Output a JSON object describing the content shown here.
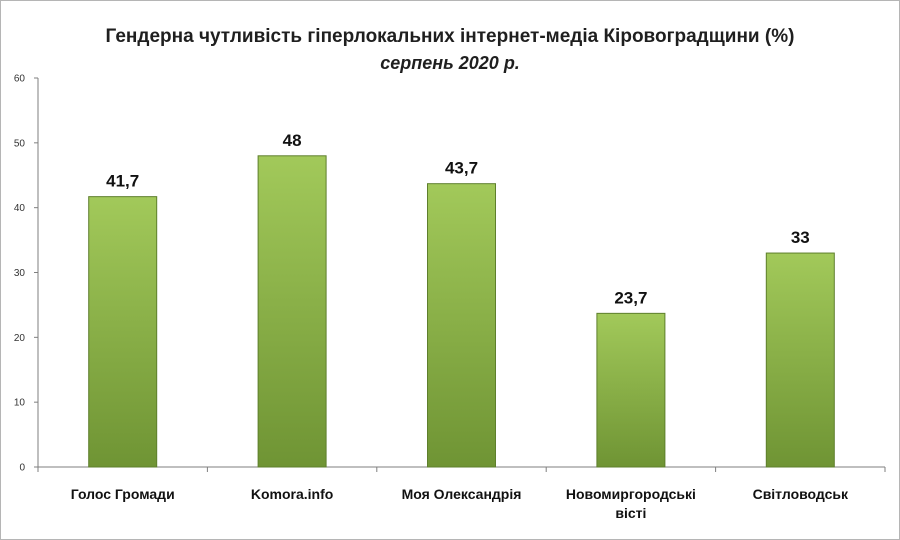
{
  "chart_data": {
    "type": "bar",
    "title": "Гендерна чутливість гіперлокальних інтернет-медіа Кіровоградщини (%)",
    "subtitle": "серпень 2020 р.",
    "categories": [
      [
        "Голос Громади"
      ],
      [
        "Komora.info"
      ],
      [
        "Моя Олександрія"
      ],
      [
        "Новомиргородські",
        "вісті"
      ],
      [
        "Світловодськ"
      ]
    ],
    "values": [
      41.7,
      48,
      43.7,
      23.7,
      33
    ],
    "value_labels": [
      "41,7",
      "48",
      "43,7",
      "23,7",
      "33"
    ],
    "ylim": [
      0,
      60
    ],
    "yticks": [
      0,
      10,
      20,
      30,
      40,
      50,
      60
    ],
    "xlabel": "",
    "ylabel": "",
    "grid": false,
    "legend": "none",
    "colors": {
      "bar_top": "#a2c95a",
      "bar_bottom": "#6f9434",
      "bar_edge": "#5e7f2c",
      "axis": "#7f7f7f"
    }
  }
}
